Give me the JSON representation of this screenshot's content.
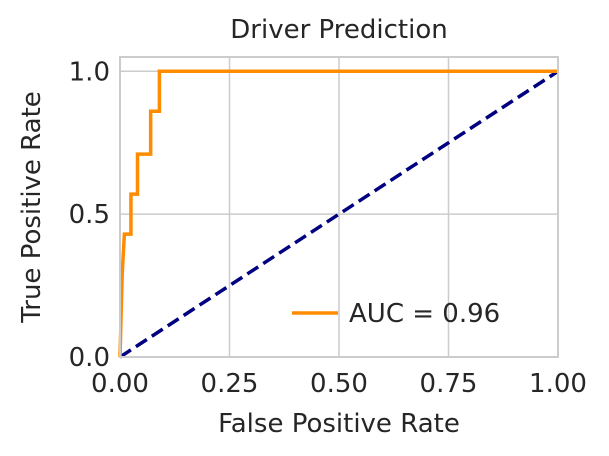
{
  "chart_data": {
    "type": "line",
    "title": "Driver Prediction",
    "xlabel": "False Positive Rate",
    "ylabel": "True Positive Rate",
    "xlim": [
      0.0,
      1.0
    ],
    "ylim": [
      0.0,
      1.05
    ],
    "x_ticks": [
      0.0,
      0.25,
      0.5,
      0.75,
      1.0
    ],
    "x_tick_labels": [
      "0.00",
      "0.25",
      "0.50",
      "0.75",
      "1.00"
    ],
    "y_ticks": [
      0.0,
      0.5,
      1.0
    ],
    "y_tick_labels": [
      "0.0",
      "0.5",
      "1.0"
    ],
    "grid": true,
    "legend_position": "lower-right",
    "series": [
      {
        "name": "AUC = 0.96",
        "color": "#ff8c00",
        "style": "solid",
        "x": [
          0.0,
          0.005,
          0.005,
          0.01,
          0.01,
          0.025,
          0.025,
          0.04,
          0.04,
          0.07,
          0.07,
          0.085,
          0.085,
          0.09,
          0.09,
          1.0
        ],
        "y": [
          0.0,
          0.29,
          0.29,
          0.43,
          0.43,
          0.43,
          0.57,
          0.57,
          0.71,
          0.71,
          0.86,
          0.86,
          0.86,
          0.86,
          1.0,
          1.0
        ]
      },
      {
        "color": "#000080",
        "style": "dashed",
        "x": [
          0.0,
          1.0
        ],
        "y": [
          0.0,
          1.0
        ]
      }
    ]
  }
}
